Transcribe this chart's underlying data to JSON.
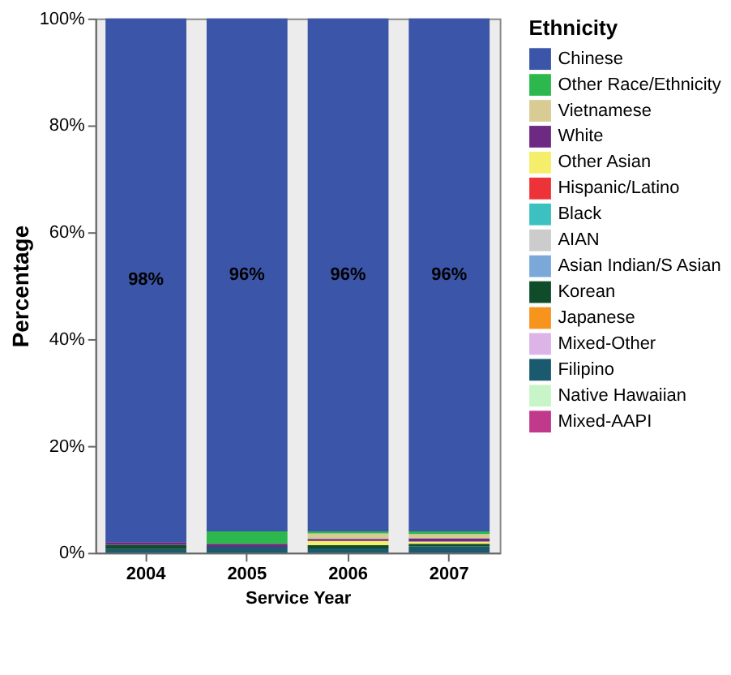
{
  "chart_data": {
    "type": "bar",
    "stacked": true,
    "xlabel": "Service Year",
    "ylabel": "Percentage",
    "legend_title": "Ethnicity",
    "legend": "right",
    "grid": false,
    "categories": [
      "2004",
      "2005",
      "2006",
      "2007"
    ],
    "ylim": [
      0,
      100
    ],
    "yticks": [
      {
        "value": 0,
        "label": "0%"
      },
      {
        "value": 20,
        "label": "20%"
      },
      {
        "value": 40,
        "label": "40%"
      },
      {
        "value": 60,
        "label": "60%"
      },
      {
        "value": 80,
        "label": "80%"
      },
      {
        "value": 100,
        "label": "100%"
      }
    ],
    "series": [
      {
        "name": "Mixed-AAPI",
        "color": "#c0398a",
        "values": [
          0,
          0,
          0,
          0
        ]
      },
      {
        "name": "Native Hawaiian",
        "color": "#c8f5c8",
        "values": [
          0,
          0,
          0,
          0
        ]
      },
      {
        "name": "Filipino",
        "color": "#1a5a6e",
        "values": [
          0.7,
          1.1,
          0.8,
          1.2
        ]
      },
      {
        "name": "Mixed-Other",
        "color": "#dcb4e8",
        "values": [
          0,
          0,
          0,
          0
        ]
      },
      {
        "name": "Japanese",
        "color": "#f7941d",
        "values": [
          0,
          0,
          0,
          0
        ]
      },
      {
        "name": "Korean",
        "color": "#0f4d2a",
        "values": [
          0.8,
          0,
          0.6,
          0.5
        ]
      },
      {
        "name": "Asian Indian/S Asian",
        "color": "#7aa8d8",
        "values": [
          0,
          0,
          0,
          0
        ]
      },
      {
        "name": "AIAN",
        "color": "#cccccc",
        "values": [
          0,
          0,
          0,
          0
        ]
      },
      {
        "name": "Black",
        "color": "#3cc0c0",
        "values": [
          0,
          0,
          0,
          0
        ]
      },
      {
        "name": "Hispanic/Latino",
        "color": "#ee3338",
        "values": [
          0,
          0,
          0,
          0
        ]
      },
      {
        "name": "Other Asian",
        "color": "#f5ee6a",
        "values": [
          0,
          0,
          0.8,
          0.4
        ]
      },
      {
        "name": "White",
        "color": "#6e2a82",
        "values": [
          0.5,
          0.6,
          0.4,
          0.6
        ]
      },
      {
        "name": "Vietnamese",
        "color": "#d8cc94",
        "values": [
          0,
          0,
          1.0,
          0.8
        ]
      },
      {
        "name": "Other Race/Ethnicity",
        "color": "#2db84d",
        "values": [
          0,
          2.3,
          0.4,
          0.5
        ]
      },
      {
        "name": "Chinese",
        "color": "#3b55a8",
        "values": [
          98,
          96,
          96,
          96
        ],
        "value_labels": [
          "98%",
          "96%",
          "96%",
          "96%"
        ]
      }
    ]
  }
}
